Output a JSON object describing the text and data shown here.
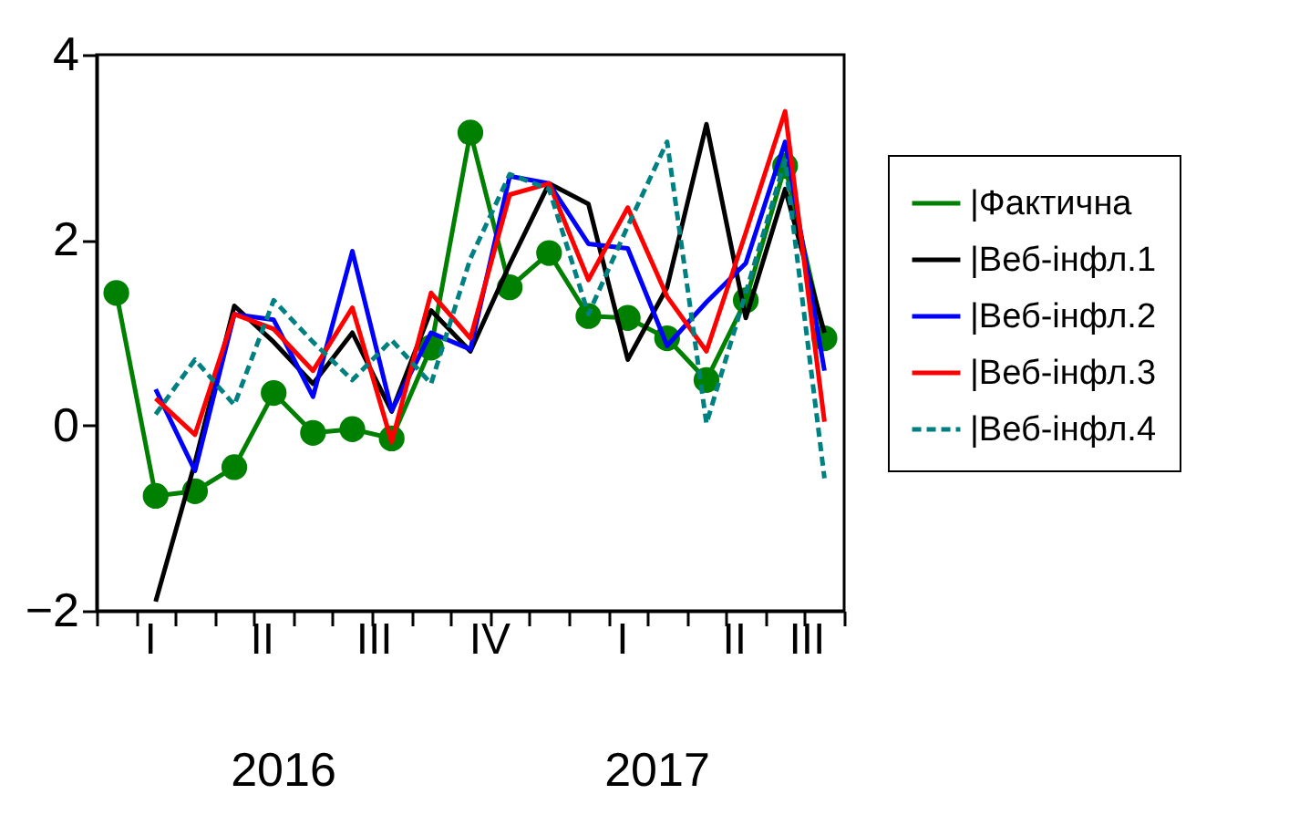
{
  "chart_data": {
    "type": "line",
    "categories": [
      null,
      "I",
      null,
      null,
      "II",
      null,
      null,
      "III",
      null,
      null,
      "IV",
      null,
      null,
      "I",
      null,
      null,
      "II",
      null,
      "III"
    ],
    "series": [
      {
        "name": "|Фактична",
        "color": "#008000",
        "marker": "circle",
        "line_style": "solid",
        "values": [
          1.43,
          -0.76,
          -0.71,
          -0.45,
          0.35,
          -0.08,
          -0.04,
          -0.14,
          0.84,
          3.16,
          1.49,
          1.86,
          1.18,
          1.16,
          0.94,
          0.49,
          1.35,
          2.8,
          0.94
        ]
      },
      {
        "name": "|Веб-інфл.1",
        "color": "#000000",
        "marker": "none",
        "line_style": "solid",
        "values": [
          null,
          -1.9,
          -0.4,
          1.29,
          0.9,
          0.45,
          1.0,
          0.15,
          1.24,
          0.8,
          1.74,
          2.61,
          2.39,
          0.71,
          1.49,
          3.25,
          1.16,
          2.55,
          1.0
        ]
      },
      {
        "name": "|Веб-інфл.2",
        "color": "#0000ff",
        "marker": "none",
        "line_style": "solid",
        "values": [
          null,
          0.39,
          -0.49,
          1.2,
          1.14,
          0.31,
          1.88,
          0.16,
          1.0,
          0.82,
          2.69,
          2.61,
          1.96,
          1.91,
          0.86,
          1.33,
          1.75,
          3.06,
          0.59
        ]
      },
      {
        "name": "|Веб-інфл.3",
        "color": "#ff0000",
        "marker": "none",
        "line_style": "solid",
        "values": [
          null,
          0.29,
          -0.1,
          1.2,
          1.04,
          0.59,
          1.27,
          -0.18,
          1.43,
          0.94,
          2.49,
          2.61,
          1.57,
          2.35,
          1.39,
          0.8,
          2.08,
          3.39,
          0.04
        ]
      },
      {
        "name": "|Веб-інфл.4",
        "color": "#008080",
        "marker": "none",
        "line_style": "dashed",
        "values": [
          null,
          0.12,
          0.71,
          0.22,
          1.35,
          0.9,
          0.49,
          0.92,
          0.45,
          1.8,
          2.71,
          2.55,
          1.2,
          2.15,
          3.06,
          0.02,
          1.43,
          2.86,
          -0.57
        ]
      }
    ],
    "ylim": [
      -2,
      4
    ],
    "yticks": [
      -2,
      0,
      2,
      4
    ],
    "grid": false,
    "legend": "right",
    "annotations": [
      "2016",
      "2017"
    ]
  }
}
